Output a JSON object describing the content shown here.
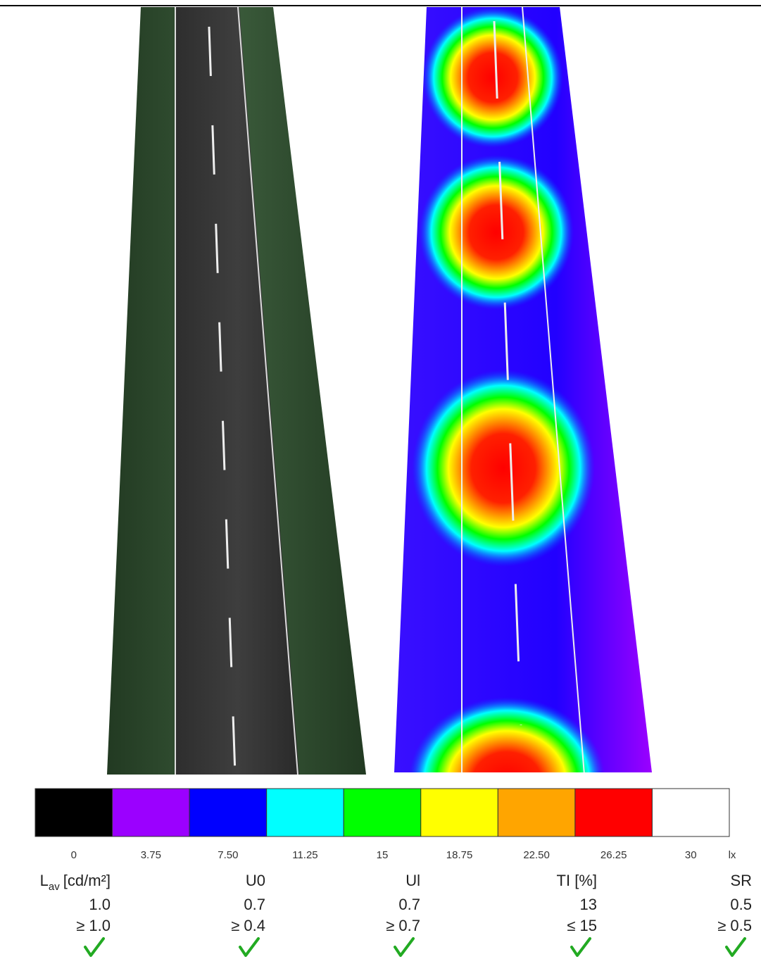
{
  "scale": {
    "colors": [
      "#000000",
      "#9b00ff",
      "#0000ff",
      "#00ffff",
      "#00ff00",
      "#ffff00",
      "#ffa500",
      "#ff0000",
      "#ffffff"
    ],
    "labels": [
      "0",
      "3.75",
      "7.50",
      "11.25",
      "15",
      "18.75",
      "22.50",
      "26.25",
      "30"
    ],
    "unit": "lx"
  },
  "metrics": [
    {
      "name": {
        "base": "L",
        "sub": "av",
        "unit": "[cd/m²]"
      },
      "value": "1.0",
      "requirement": "≥ 1.0"
    },
    {
      "name": {
        "base": "U0"
      },
      "value": "0.7",
      "requirement": "≥ 0.4"
    },
    {
      "name": {
        "base": "Ul"
      },
      "value": "0.7",
      "requirement": "≥ 0.7"
    },
    {
      "name": {
        "base": "TI [%]"
      },
      "value": "13",
      "requirement": "≤ 15"
    },
    {
      "name": {
        "base": "SR"
      },
      "value": "0.5",
      "requirement": "≥ 0.5"
    }
  ]
}
